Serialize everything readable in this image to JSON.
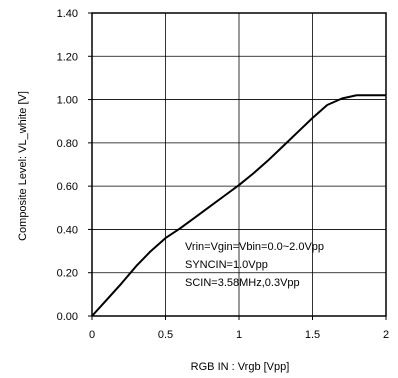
{
  "chart_data": {
    "type": "line",
    "xlabel": "RGB IN : Vrgb [Vpp]",
    "ylabel": "Composite Level: VL_white [V]",
    "xlim": [
      0,
      2
    ],
    "ylim": [
      0,
      1.4
    ],
    "xticks": [
      0,
      0.5,
      1,
      1.5,
      2
    ],
    "xtick_labels": [
      "0",
      "0.5",
      "1",
      "1.5",
      "2"
    ],
    "yticks": [
      0,
      0.2,
      0.4,
      0.6,
      0.8,
      1.0,
      1.2,
      1.4
    ],
    "ytick_labels": [
      "0.00",
      "0.20",
      "0.40",
      "0.60",
      "0.80",
      "1.00",
      "1.20",
      "1.40"
    ],
    "grid": true,
    "annotations": [
      "Vrin=Vgin=Vbin=0.0~2.0Vpp",
      "SYNCIN=1.0Vpp",
      "SCIN=3.58MHz,0.3Vpp"
    ],
    "series": [
      {
        "color": "#000000",
        "x": [
          0,
          0.1,
          0.2,
          0.3,
          0.4,
          0.5,
          0.6,
          0.7,
          0.8,
          0.9,
          1.0,
          1.1,
          1.2,
          1.3,
          1.4,
          1.5,
          1.6,
          1.7,
          1.8,
          1.9,
          2.0
        ],
        "y": [
          0,
          0.075,
          0.15,
          0.23,
          0.3,
          0.36,
          0.405,
          0.455,
          0.505,
          0.555,
          0.605,
          0.66,
          0.72,
          0.785,
          0.85,
          0.915,
          0.975,
          1.005,
          1.02,
          1.02,
          1.02
        ]
      }
    ]
  }
}
